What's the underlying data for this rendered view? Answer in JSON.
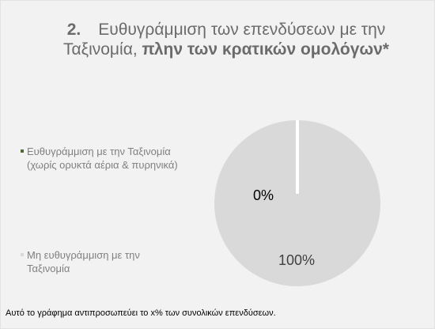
{
  "title": {
    "number": "2.",
    "plain": "Ευθυγράμμιση των επενδύσεων με την Ταξινομία,",
    "bold": "πλην των κρατικών ομολόγων*"
  },
  "chart_data": {
    "type": "pie",
    "slices": [
      {
        "label": "Ευθυγράμμιση με την Ταξινομία (χωρίς ορυκτά αέρια & πυρηνικά)",
        "value": 0,
        "data_label": "0%",
        "color": "#4e6b35"
      },
      {
        "label": "Μη ευθυγράμμιση με την Ταξινομία",
        "value": 100,
        "data_label": "100%",
        "color": "#d9d9d9"
      }
    ],
    "legend_position": "left"
  },
  "legend": {
    "line1_a": "Ευθυγράμμιση με την Ταξινομία",
    "line1_b": "(χωρίς ορυκτά αέρια & πυρηνικά)",
    "line2_a": "Μη ευθυγράμμιση με την",
    "line2_b": "Ταξινομία"
  },
  "footnote": "Αυτό το γράφημα αντιπροσωπεύει το x% των συνολικών επενδύσεων."
}
